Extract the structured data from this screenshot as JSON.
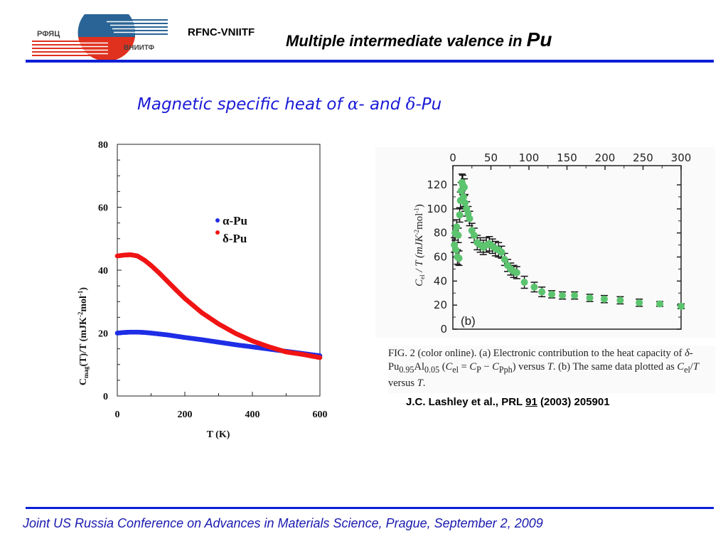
{
  "header": {
    "logo_text_left": "РФЯЦ",
    "logo_text_right": "ВНИИТФ",
    "org": "RFNC-VNIITF",
    "title_main": "Multiple intermediate valence in ",
    "title_element": "Pu"
  },
  "subtitle": {
    "part1": "Magnetic specific heat of ",
    "alpha": "α",
    "part2": "- and ",
    "delta": "δ",
    "part3": "-Pu"
  },
  "colors": {
    "accent_line": "#0a1fd6",
    "alpha_series": "#1f2ee6",
    "delta_series": "#f01414",
    "right_points": "#5cc46e",
    "subtitle": "#1a1ad6"
  },
  "chart_data": [
    {
      "type": "scatter",
      "title": "",
      "xlabel": "T (K)",
      "ylabel": "Cmag(T)/T (mJK-2mol-1)",
      "ylabel_parts": {
        "c": "C",
        "sub": "mag",
        "mid": "(T)/T (mJK",
        "sup1": "-2",
        "mid2": "mol",
        "sup2": "-1",
        "end": ")"
      },
      "xlim": [
        0,
        600
      ],
      "ylim": [
        0,
        80
      ],
      "xticks": [
        "0",
        "200",
        "400",
        "600"
      ],
      "yticks": [
        "0",
        "20",
        "40",
        "60",
        "80"
      ],
      "legend_position": "upper-right",
      "series": [
        {
          "name": "α-Pu",
          "color": "#1f2ee6",
          "x": [
            0,
            20,
            40,
            60,
            80,
            100,
            150,
            200,
            250,
            300,
            350,
            400,
            450,
            500,
            550,
            600
          ],
          "y": [
            20.0,
            20.2,
            20.3,
            20.3,
            20.2,
            20.0,
            19.4,
            18.6,
            17.9,
            17.1,
            16.3,
            15.6,
            14.9,
            14.2,
            13.5,
            12.8
          ]
        },
        {
          "name": "δ-Pu",
          "color": "#f01414",
          "x": [
            0,
            20,
            40,
            60,
            80,
            100,
            125,
            150,
            175,
            200,
            250,
            300,
            350,
            400,
            450,
            500,
            550,
            600
          ],
          "y": [
            44.5,
            44.8,
            44.9,
            44.5,
            43.2,
            41.5,
            39.0,
            36.3,
            33.6,
            31.0,
            26.5,
            22.9,
            19.9,
            17.5,
            15.6,
            14.0,
            13.2,
            12.2
          ]
        }
      ]
    },
    {
      "type": "scatter",
      "title": "",
      "panel_label": "(b)",
      "xlabel": "",
      "ylabel": "Cel / T (mJK-2mol-1)",
      "ylabel_parts": {
        "c": "C",
        "sub": "el",
        "mid": " / T (mJK",
        "sup1": "-2",
        "mid2": "mol",
        "sup2": "-1",
        "end": ")"
      },
      "xlim": [
        0,
        300
      ],
      "ylim": [
        0,
        135
      ],
      "xticks": [
        "0",
        "50",
        "100",
        "150",
        "200",
        "250",
        "300"
      ],
      "yticks": [
        "0",
        "20",
        "40",
        "60",
        "80",
        "100",
        "120"
      ],
      "x_axis_position": "top",
      "error_bars": true,
      "series": [
        {
          "name": "δ-Pu0.95Al0.05",
          "color": "#5cc46e",
          "x": [
            2,
            3,
            4,
            5,
            6,
            7,
            8,
            9,
            10,
            11,
            12,
            13,
            14,
            15,
            16,
            18,
            20,
            22,
            25,
            28,
            32,
            36,
            40,
            44,
            48,
            52,
            56,
            60,
            64,
            68,
            72,
            76,
            80,
            84,
            94,
            107,
            117,
            130,
            144,
            160,
            180,
            199,
            220,
            245,
            272,
            300
          ],
          "y": [
            70,
            80,
            66,
            85,
            60,
            78,
            59,
            95,
            107,
            115,
            122,
            120,
            110,
            118,
            105,
            100,
            96,
            92,
            82,
            78,
            72,
            70,
            68,
            70,
            71,
            69,
            67,
            66,
            64,
            58,
            53,
            50,
            48,
            47,
            39,
            35,
            31,
            29,
            28,
            28,
            26,
            25,
            24,
            22,
            21,
            19
          ],
          "err": [
            6,
            6,
            6,
            6,
            6,
            6,
            6,
            6,
            7,
            7,
            7,
            8,
            8,
            7,
            7,
            6,
            6,
            6,
            6,
            6,
            6,
            6,
            6,
            6,
            6,
            6,
            6,
            6,
            5,
            5,
            5,
            5,
            5,
            5,
            5,
            4,
            4,
            3,
            3,
            3,
            3,
            3,
            3,
            3,
            2,
            2
          ]
        }
      ]
    }
  ],
  "caption": {
    "p1": "FIG. 2 (color online).   (a) Electronic contribution to the heat capacity of ",
    "delta": "δ",
    "p2": "-Pu",
    "sub1": "0.95",
    "p3": "Al",
    "sub2": "0.05",
    "p4": " (",
    "cel": "C",
    "cel_sub": "el",
    "p5": " = ",
    "cp": "C",
    "cp_sub": "P",
    "p6": " − ",
    "cpph": "C",
    "cpph_sub": "Pph",
    "p7": ") versus ",
    "t1": "T",
    "p8": ". (b) The same data plotted as ",
    "cel2": "C",
    "cel2_sub": "el",
    "p9": "/",
    "t2": "T",
    "p10": " versus ",
    "t3": "T",
    "p11": "."
  },
  "citation": {
    "pre": "J.C. Lashley et al., PRL ",
    "volume": "91",
    "post": " (2003) 205901"
  },
  "footer": {
    "text": "Joint US Russia Conference on Advances in Materials Science, Prague, September 2, 2009"
  }
}
